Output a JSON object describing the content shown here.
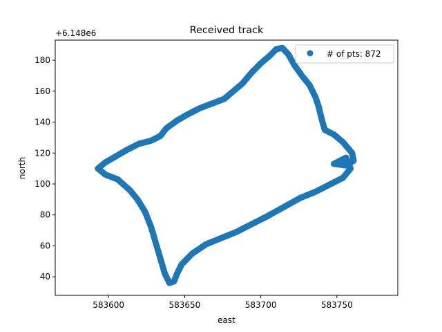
{
  "chart_data": {
    "type": "scatter",
    "title": "Received track",
    "xlabel": "east",
    "ylabel": "north",
    "y_offset_label": "+6.148e6",
    "xlim": [
      583565,
      583790
    ],
    "ylim": [
      28,
      193
    ],
    "x_ticks": [
      583600,
      583650,
      583700,
      583750
    ],
    "y_ticks": [
      40,
      60,
      80,
      100,
      120,
      140,
      160,
      180
    ],
    "grid": false,
    "legend_position": "top-right",
    "series": [
      {
        "name": "# of pts: 872",
        "color": "#1f77b4",
        "marker": "circle",
        "path_points": [
          [
            583593,
            110
          ],
          [
            583598,
            114
          ],
          [
            583605,
            118
          ],
          [
            583612,
            122
          ],
          [
            583620,
            126
          ],
          [
            583628,
            128
          ],
          [
            583634,
            131
          ],
          [
            583638,
            136
          ],
          [
            583645,
            141
          ],
          [
            583652,
            145
          ],
          [
            583660,
            149
          ],
          [
            583668,
            152
          ],
          [
            583676,
            155
          ],
          [
            583682,
            160
          ],
          [
            583688,
            165
          ],
          [
            583694,
            172
          ],
          [
            583700,
            178
          ],
          [
            583706,
            183
          ],
          [
            583710,
            187
          ],
          [
            583714,
            188
          ],
          [
            583718,
            184
          ],
          [
            583722,
            177
          ],
          [
            583727,
            170
          ],
          [
            583732,
            164
          ],
          [
            583736,
            156
          ],
          [
            583738,
            150
          ],
          [
            583740,
            142
          ],
          [
            583742,
            135
          ],
          [
            583748,
            132
          ],
          [
            583754,
            127
          ],
          [
            583760,
            120
          ],
          [
            583761,
            115
          ],
          [
            583756,
            112
          ],
          [
            583748,
            113
          ],
          [
            583756,
            117
          ],
          [
            583759,
            110
          ],
          [
            583754,
            104
          ],
          [
            583746,
            100
          ],
          [
            583736,
            95
          ],
          [
            583726,
            91
          ],
          [
            583715,
            85
          ],
          [
            583704,
            79
          ],
          [
            583694,
            74
          ],
          [
            583684,
            69
          ],
          [
            583674,
            65
          ],
          [
            583664,
            61
          ],
          [
            583655,
            55
          ],
          [
            583648,
            48
          ],
          [
            583645,
            42
          ],
          [
            583643,
            37
          ],
          [
            583640,
            36
          ],
          [
            583637,
            42
          ],
          [
            583634,
            52
          ],
          [
            583631,
            62
          ],
          [
            583628,
            72
          ],
          [
            583624,
            82
          ],
          [
            583619,
            90
          ],
          [
            583614,
            96
          ],
          [
            583606,
            103
          ],
          [
            583598,
            106
          ],
          [
            583593,
            110
          ]
        ],
        "count": 872
      }
    ]
  }
}
